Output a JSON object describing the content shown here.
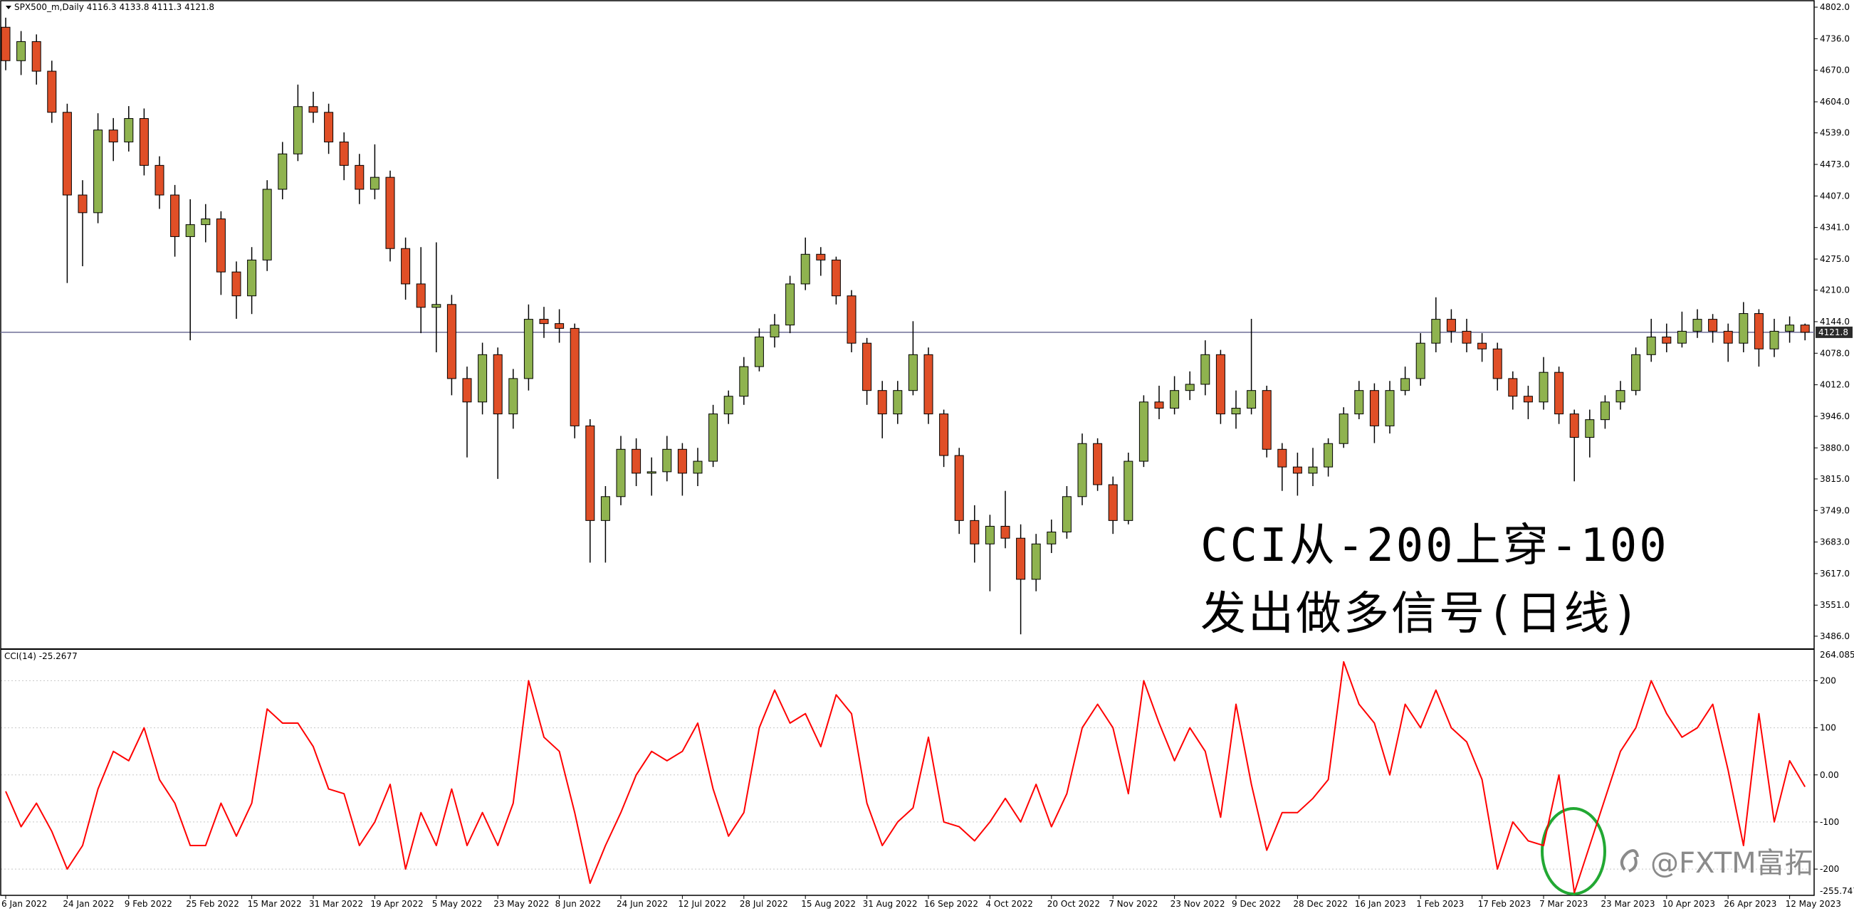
{
  "chart_data": [
    {
      "type": "candlestick",
      "title": "SPX500_m,Daily  4116.3 4133.8 4111.3 4121.8",
      "up_color": "#8fb34f",
      "down_color": "#e04f27",
      "open": [
        4760,
        4690,
        4730,
        4668,
        4582,
        4409,
        4372,
        4545,
        4520,
        4569,
        4471,
        4409,
        4322,
        4347,
        4359,
        4248,
        4198,
        4273,
        4421,
        4495,
        4594,
        4582,
        4520,
        4471,
        4421,
        4446,
        4297,
        4223,
        4174,
        4180,
        4025,
        3976,
        4075,
        3951,
        4025,
        4149,
        4140,
        4130,
        3926,
        3728,
        3778,
        3877,
        3827,
        3830,
        3877,
        3827,
        3852,
        3951,
        3988,
        4050,
        4112,
        4137,
        4223,
        4285,
        4273,
        4198,
        4099,
        4000,
        3951,
        4000,
        4075,
        3951,
        3864,
        3728,
        3679,
        3716,
        3691,
        3605,
        3679,
        3704,
        3778,
        3889,
        3803,
        3728,
        3852,
        3976,
        3963,
        4000,
        4013,
        4075,
        3951,
        3963,
        4000,
        3877,
        3840,
        3827,
        3840,
        3889,
        3951,
        4000,
        3926,
        4000,
        4025,
        4099,
        4149,
        4124,
        4099,
        4087,
        4025,
        3988,
        3976,
        4038,
        3951,
        3902,
        3939,
        3976,
        4000,
        4075,
        4112,
        4099,
        4124,
        4149,
        4124,
        4099,
        4161,
        4087,
        4124,
        4137
      ],
      "high": [
        4780,
        4752,
        4745,
        4690,
        4600,
        4440,
        4580,
        4570,
        4595,
        4590,
        4490,
        4430,
        4400,
        4390,
        4375,
        4270,
        4300,
        4440,
        4520,
        4640,
        4625,
        4600,
        4540,
        4495,
        4515,
        4460,
        4320,
        4300,
        4310,
        4200,
        4050,
        4100,
        4090,
        4045,
        4180,
        4175,
        4170,
        4140,
        3940,
        3800,
        3905,
        3900,
        3860,
        3905,
        3890,
        3880,
        3970,
        4000,
        4070,
        4130,
        4160,
        4240,
        4320,
        4300,
        4280,
        4210,
        4110,
        4020,
        4020,
        4145,
        4090,
        3960,
        3880,
        3760,
        3740,
        3790,
        3720,
        3700,
        3730,
        3800,
        3910,
        3900,
        3820,
        3870,
        3990,
        4010,
        4030,
        4040,
        4105,
        4085,
        4000,
        4150,
        4010,
        3890,
        3870,
        3880,
        3900,
        3965,
        4020,
        4015,
        4020,
        4050,
        4120,
        4195,
        4170,
        4150,
        4120,
        4100,
        4040,
        4010,
        4070,
        4050,
        3960,
        3960,
        3990,
        4020,
        4090,
        4150,
        4140,
        4165,
        4170,
        4160,
        4140,
        4185,
        4170,
        4150,
        4155,
        4140
      ],
      "low": [
        4670,
        4660,
        4640,
        4560,
        4225,
        4260,
        4350,
        4480,
        4500,
        4450,
        4380,
        4280,
        4105,
        4310,
        4200,
        4150,
        4160,
        4250,
        4400,
        4480,
        4560,
        4495,
        4440,
        4390,
        4400,
        4270,
        4190,
        4120,
        4080,
        3990,
        3860,
        3950,
        3815,
        3920,
        4000,
        4110,
        4100,
        3900,
        3640,
        3640,
        3760,
        3800,
        3780,
        3810,
        3780,
        3800,
        3840,
        3930,
        3970,
        4040,
        4090,
        4120,
        4210,
        4240,
        4180,
        4080,
        3970,
        3900,
        3930,
        3990,
        3930,
        3840,
        3700,
        3640,
        3580,
        3670,
        3490,
        3580,
        3660,
        3690,
        3760,
        3790,
        3700,
        3720,
        3840,
        3940,
        3950,
        3980,
        3990,
        3930,
        3920,
        3950,
        3860,
        3790,
        3780,
        3800,
        3820,
        3880,
        3940,
        3890,
        3910,
        3990,
        4010,
        4080,
        4100,
        4080,
        4060,
        4000,
        3960,
        3940,
        3960,
        3930,
        3810,
        3860,
        3920,
        3960,
        3990,
        4060,
        4080,
        4090,
        4110,
        4100,
        4060,
        4080,
        4050,
        4070,
        4100,
        4105
      ],
      "close": [
        4690,
        4730,
        4668,
        4582,
        4409,
        4372,
        4545,
        4520,
        4569,
        4471,
        4409,
        4322,
        4347,
        4359,
        4248,
        4198,
        4273,
        4421,
        4495,
        4594,
        4582,
        4520,
        4471,
        4421,
        4446,
        4297,
        4223,
        4174,
        4180,
        4025,
        3976,
        4075,
        3951,
        4025,
        4149,
        4140,
        4130,
        3926,
        3728,
        3778,
        3877,
        3827,
        3830,
        3877,
        3827,
        3852,
        3951,
        3988,
        4050,
        4112,
        4137,
        4223,
        4285,
        4273,
        4198,
        4099,
        4000,
        3951,
        4000,
        4075,
        3951,
        3864,
        3728,
        3679,
        3716,
        3691,
        3605,
        3679,
        3704,
        3778,
        3889,
        3803,
        3728,
        3852,
        3976,
        3963,
        4000,
        4013,
        4075,
        3951,
        3963,
        4000,
        3877,
        3840,
        3827,
        3840,
        3889,
        3951,
        4000,
        3926,
        4000,
        4025,
        4099,
        4149,
        4124,
        4099,
        4087,
        4025,
        3988,
        3976,
        4038,
        3951,
        3902,
        3939,
        3976,
        4000,
        4075,
        4112,
        4099,
        4124,
        4149,
        4124,
        4099,
        4161,
        4087,
        4124,
        4137,
        4121.8
      ],
      "last_price": 4121.8,
      "ylim": [
        3462,
        4814
      ],
      "yticks": [
        {
          "value": 4802,
          "label": "4802.0"
        },
        {
          "value": 4736,
          "label": "4736.0"
        },
        {
          "value": 4670,
          "label": "4670.0"
        },
        {
          "value": 4604,
          "label": "4604.0"
        },
        {
          "value": 4539,
          "label": "4539.0"
        },
        {
          "value": 4473,
          "label": "4473.0"
        },
        {
          "value": 4407,
          "label": "4407.0"
        },
        {
          "value": 4341,
          "label": "4341.0"
        },
        {
          "value": 4275,
          "label": "4275.0"
        },
        {
          "value": 4210,
          "label": "4210.0"
        },
        {
          "value": 4144,
          "label": "4144.0"
        },
        {
          "value": 4078,
          "label": "4078.0"
        },
        {
          "value": 4012,
          "label": "4012.0"
        },
        {
          "value": 3946,
          "label": "3946.0"
        },
        {
          "value": 3880,
          "label": "3880.0"
        },
        {
          "value": 3815,
          "label": "3815.0"
        },
        {
          "value": 3749,
          "label": "3749.0"
        },
        {
          "value": 3683,
          "label": "3683.0"
        },
        {
          "value": 3617,
          "label": "3617.0"
        },
        {
          "value": 3551,
          "label": "3551.0"
        },
        {
          "value": 3486,
          "label": "3486.0"
        }
      ],
      "annotations": [
        "CCI从-200上穿-100",
        "发出做多信号(日线)"
      ]
    },
    {
      "type": "line",
      "title": "CCI(14) -25.2677",
      "categories": [
        "6 Jan 2022",
        null,
        null,
        null,
        "24 Jan 2022",
        null,
        null,
        null,
        "9 Feb 2022",
        null,
        null,
        null,
        "25 Feb 2022",
        null,
        null,
        null,
        "15 Mar 2022",
        null,
        null,
        null,
        "31 Mar 2022",
        null,
        null,
        null,
        "19 Apr 2022",
        null,
        null,
        null,
        "5 May 2022",
        null,
        null,
        null,
        "23 May 2022",
        null,
        null,
        null,
        "8 Jun 2022",
        null,
        null,
        null,
        "24 Jun 2022",
        null,
        null,
        null,
        "12 Jul 2022",
        null,
        null,
        null,
        "28 Jul 2022",
        null,
        null,
        null,
        "15 Aug 2022",
        null,
        null,
        null,
        "31 Aug 2022",
        null,
        null,
        null,
        "16 Sep 2022",
        null,
        null,
        null,
        "4 Oct 2022",
        null,
        null,
        null,
        "20 Oct 2022",
        null,
        null,
        null,
        "7 Nov 2022",
        null,
        null,
        null,
        "23 Nov 2022",
        null,
        null,
        null,
        "9 Dec 2022",
        null,
        null,
        null,
        "28 Dec 2022",
        null,
        null,
        null,
        "16 Jan 2023",
        null,
        null,
        null,
        "1 Feb 2023",
        null,
        null,
        null,
        "17 Feb 2023",
        null,
        null,
        null,
        "7 Mar 2023",
        null,
        null,
        null,
        "23 Mar 2023",
        null,
        null,
        null,
        "10 Apr 2023",
        null,
        null,
        null,
        "26 Apr 2023",
        null,
        null,
        null,
        "12 May 2023",
        null
      ],
      "series": [
        {
          "color": "#ff0000",
          "values": [
            -35,
            -110,
            -60,
            -120,
            -200,
            -150,
            -30,
            50,
            30,
            100,
            -10,
            -60,
            -150,
            -150,
            -60,
            -130,
            -60,
            140,
            110,
            110,
            60,
            -30,
            -40,
            -150,
            -100,
            -20,
            -200,
            -80,
            -150,
            -30,
            -150,
            -80,
            -150,
            -60,
            200,
            80,
            50,
            -80,
            -230,
            -150,
            -80,
            0,
            50,
            30,
            50,
            110,
            -30,
            -130,
            -80,
            100,
            180,
            110,
            130,
            60,
            170,
            130,
            -60,
            -150,
            -100,
            -70,
            80,
            -100,
            -110,
            -140,
            -100,
            -50,
            -100,
            -20,
            -110,
            -40,
            100,
            150,
            100,
            -40,
            200,
            110,
            30,
            100,
            50,
            -90,
            150,
            -20,
            -160,
            -80,
            -80,
            -50,
            -10,
            240,
            150,
            110,
            0,
            150,
            100,
            180,
            100,
            70,
            -10,
            -200,
            -100,
            -140,
            -150,
            0,
            -250,
            -150,
            -50,
            50,
            100,
            200,
            130,
            80,
            100,
            150,
            10,
            -150,
            130,
            -100,
            30,
            -25.2677
          ]
        }
      ],
      "ylim": [
        -255.7473,
        264.0853
      ],
      "yticks": [
        200,
        100,
        {
          "value": 0,
          "label": "0.00"
        },
        -100,
        -200
      ],
      "grid": true,
      "watermark": "@FXTM富拓"
    }
  ]
}
